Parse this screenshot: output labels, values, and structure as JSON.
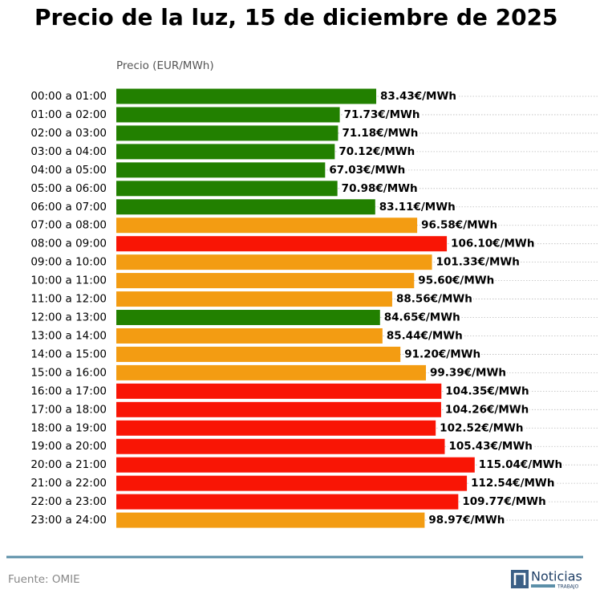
{
  "chart_data": {
    "type": "barh",
    "title": "Precio de la luz, 15 de diciembre de 2025",
    "x_label": "Precio (EUR/MWh)",
    "categories": [
      "00:00 a 01:00",
      "01:00 a 02:00",
      "02:00 a 03:00",
      "03:00 a 04:00",
      "04:00 a 05:00",
      "05:00 a 06:00",
      "06:00 a 07:00",
      "07:00 a 08:00",
      "08:00 a 09:00",
      "09:00 a 10:00",
      "10:00 a 11:00",
      "11:00 a 12:00",
      "12:00 a 13:00",
      "13:00 a 14:00",
      "14:00 a 15:00",
      "15:00 a 16:00",
      "16:00 a 17:00",
      "17:00 a 18:00",
      "18:00 a 19:00",
      "19:00 a 20:00",
      "20:00 a 21:00",
      "21:00 a 22:00",
      "22:00 a 23:00",
      "23:00 a 24:00"
    ],
    "values": [
      83.43,
      71.73,
      71.18,
      70.12,
      67.03,
      70.98,
      83.11,
      96.58,
      106.1,
      101.33,
      95.6,
      88.56,
      84.65,
      85.44,
      91.2,
      99.39,
      104.35,
      104.26,
      102.52,
      105.43,
      115.04,
      112.54,
      109.77,
      98.97
    ],
    "value_labels": [
      "83.43€/MWh",
      "71.73€/MWh",
      "71.18€/MWh",
      "70.12€/MWh",
      "67.03€/MWh",
      "70.98€/MWh",
      "83.11€/MWh",
      "96.58€/MWh",
      "106.10€/MWh",
      "101.33€/MWh",
      "95.60€/MWh",
      "88.56€/MWh",
      "84.65€/MWh",
      "85.44€/MWh",
      "91.20€/MWh",
      "99.39€/MWh",
      "104.35€/MWh",
      "104.26€/MWh",
      "102.52€/MWh",
      "105.43€/MWh",
      "115.04€/MWh",
      "112.54€/MWh",
      "109.77€/MWh",
      "98.97€/MWh"
    ],
    "colors": [
      "#228000",
      "#228000",
      "#228000",
      "#228000",
      "#228000",
      "#228000",
      "#228000",
      "#f39c12",
      "#f91505",
      "#f39c12",
      "#f39c12",
      "#f39c12",
      "#228000",
      "#f39c12",
      "#f39c12",
      "#f39c12",
      "#f91505",
      "#f91505",
      "#f91505",
      "#f91505",
      "#f91505",
      "#f91505",
      "#f91505",
      "#f39c12"
    ],
    "xlim": [
      0,
      155
    ]
  },
  "footer": {
    "source": "Fuente: OMIE",
    "logo": "Noticias",
    "logo_sub": "TRABAJO"
  }
}
